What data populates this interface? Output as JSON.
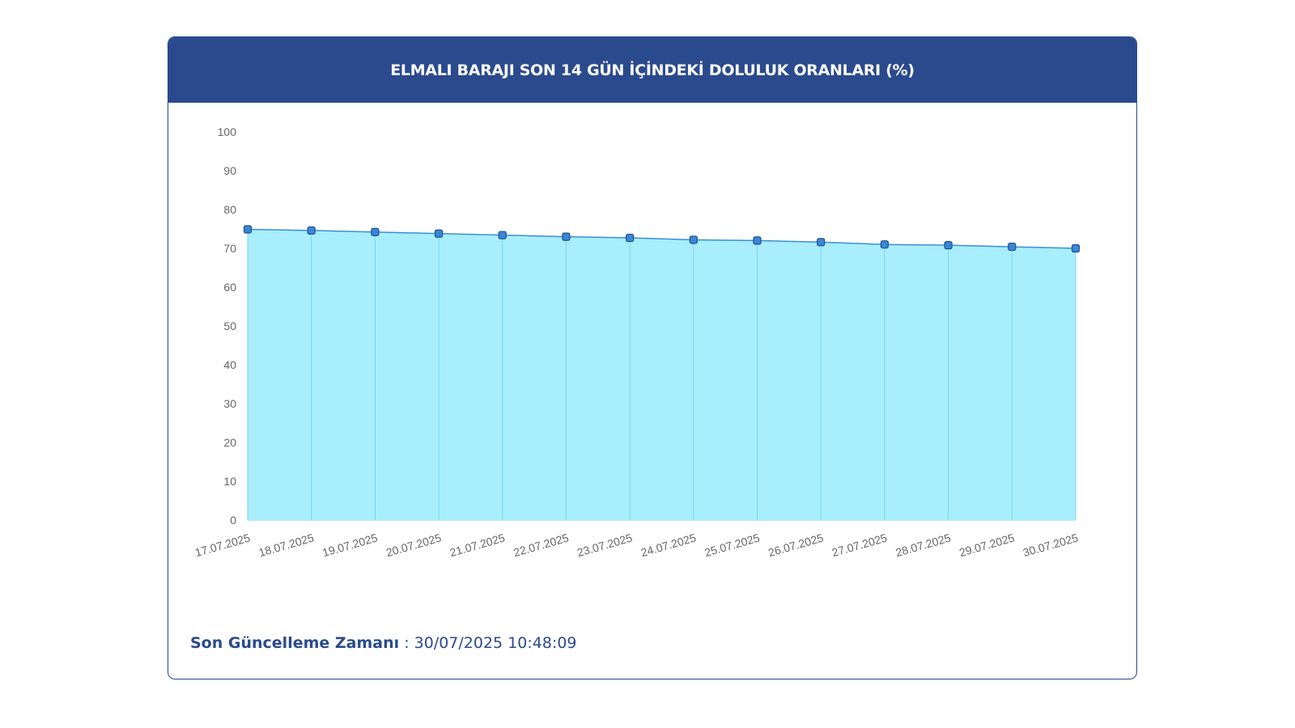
{
  "title": "ELMALI BARAJI SON 14 GÜN İÇİNDEKİ DOLULUK ORANLARI (%)",
  "footer": {
    "label": "Son Güncelleme Zamanı",
    "separator": " : ",
    "value": "30/07/2025 10:48:09"
  },
  "colors": {
    "header": "#2b4a8e",
    "fill": "#a8eefc",
    "line": "#3b8fd4",
    "marker": "#3a86d8"
  },
  "chart_data": {
    "type": "area",
    "categories": [
      "17.07.2025",
      "18.07.2025",
      "19.07.2025",
      "20.07.2025",
      "21.07.2025",
      "22.07.2025",
      "23.07.2025",
      "24.07.2025",
      "25.07.2025",
      "26.07.2025",
      "27.07.2025",
      "28.07.2025",
      "29.07.2025",
      "30.07.2025"
    ],
    "series": [
      {
        "values": [
          74.9,
          74.6,
          74.2,
          73.8,
          73.4,
          73.0,
          72.7,
          72.2,
          72.0,
          71.6,
          71.0,
          70.8,
          70.4,
          70.0
        ]
      }
    ],
    "ylim": [
      0,
      100
    ],
    "yticks": [
      0,
      10,
      20,
      30,
      40,
      50,
      60,
      70,
      80,
      90,
      100
    ],
    "grid": true,
    "legend": "none",
    "xlabel": "",
    "ylabel": ""
  }
}
